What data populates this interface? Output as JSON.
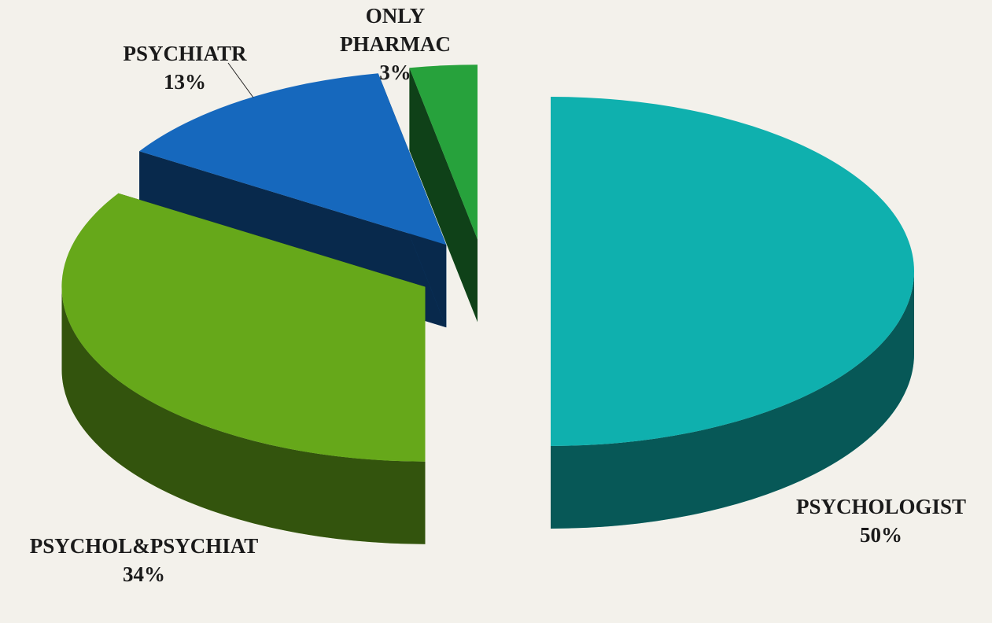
{
  "chart_data": {
    "type": "pie",
    "categories": [
      "PSYCHOLOGIST",
      "PSYCHOL&PSYCHIAT",
      "PSYCHIATR",
      "ONLY PHARMAC"
    ],
    "values": [
      50,
      34,
      13,
      3
    ],
    "value_labels": [
      "50%",
      "34%",
      "13%",
      "3%"
    ],
    "colors": [
      "#0fb0ae",
      "#66a81a",
      "#1668bd",
      "#27a23c"
    ]
  }
}
